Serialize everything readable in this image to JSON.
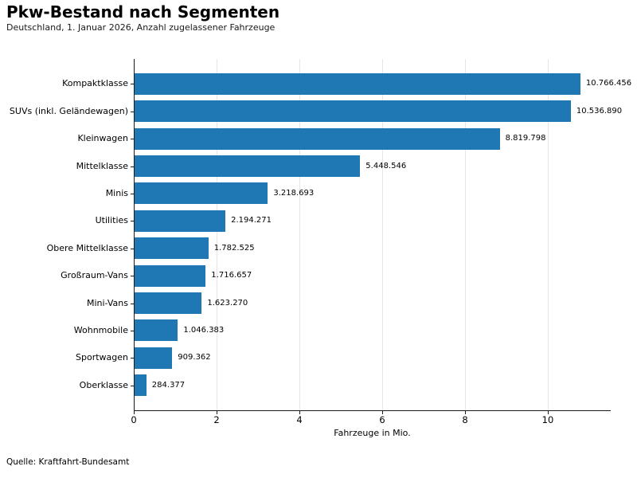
{
  "page": {
    "title": "Pkw-Bestand nach Segmenten",
    "subtitle": "Deutschland, 1. Januar 2026, Anzahl zugelassener Fahrzeuge",
    "source": "Quelle: Kraftfahrt-Bundesamt"
  },
  "chart_data": {
    "type": "bar",
    "orientation": "horizontal",
    "title": "Pkw-Bestand nach Segmenten",
    "subtitle": "Deutschland, 1. Januar 2026, Anzahl zugelassener Fahrzeuge",
    "xlabel": "Fahrzeuge in Mio.",
    "source": "Quelle: Kraftfahrt-Bundesamt",
    "categories": [
      "Kompaktklasse",
      "SUVs (inkl. Geländewagen)",
      "Kleinwagen",
      "Mittelklasse",
      "Minis",
      "Utilities",
      "Obere Mittelklasse",
      "Großraum-Vans",
      "Mini-Vans",
      "Wohnmobile",
      "Sportwagen",
      "Oberklasse"
    ],
    "values": [
      10766456,
      10536890,
      8819798,
      5448546,
      3218693,
      2194271,
      1782525,
      1716657,
      1623270,
      1046383,
      909362,
      284377
    ],
    "value_labels": [
      "10.766.456",
      "10.536.890",
      "8.819.798",
      "5.448.546",
      "3.218.693",
      "2.194.271",
      "1.782.525",
      "1.716.657",
      "1.623.270",
      "1.046.383",
      "909.362",
      "284.377"
    ],
    "x_ticks": [
      0,
      2,
      4,
      6,
      8,
      10
    ],
    "x_tick_labels": [
      "0",
      "2",
      "4",
      "6",
      "8",
      "10"
    ],
    "xlim": [
      0,
      11.5
    ],
    "grid": "vertical",
    "legend": "none",
    "bar_color": "#1f77b4",
    "gridline_color": "#e6e6e6",
    "spine_color": "#1a1a1a"
  }
}
